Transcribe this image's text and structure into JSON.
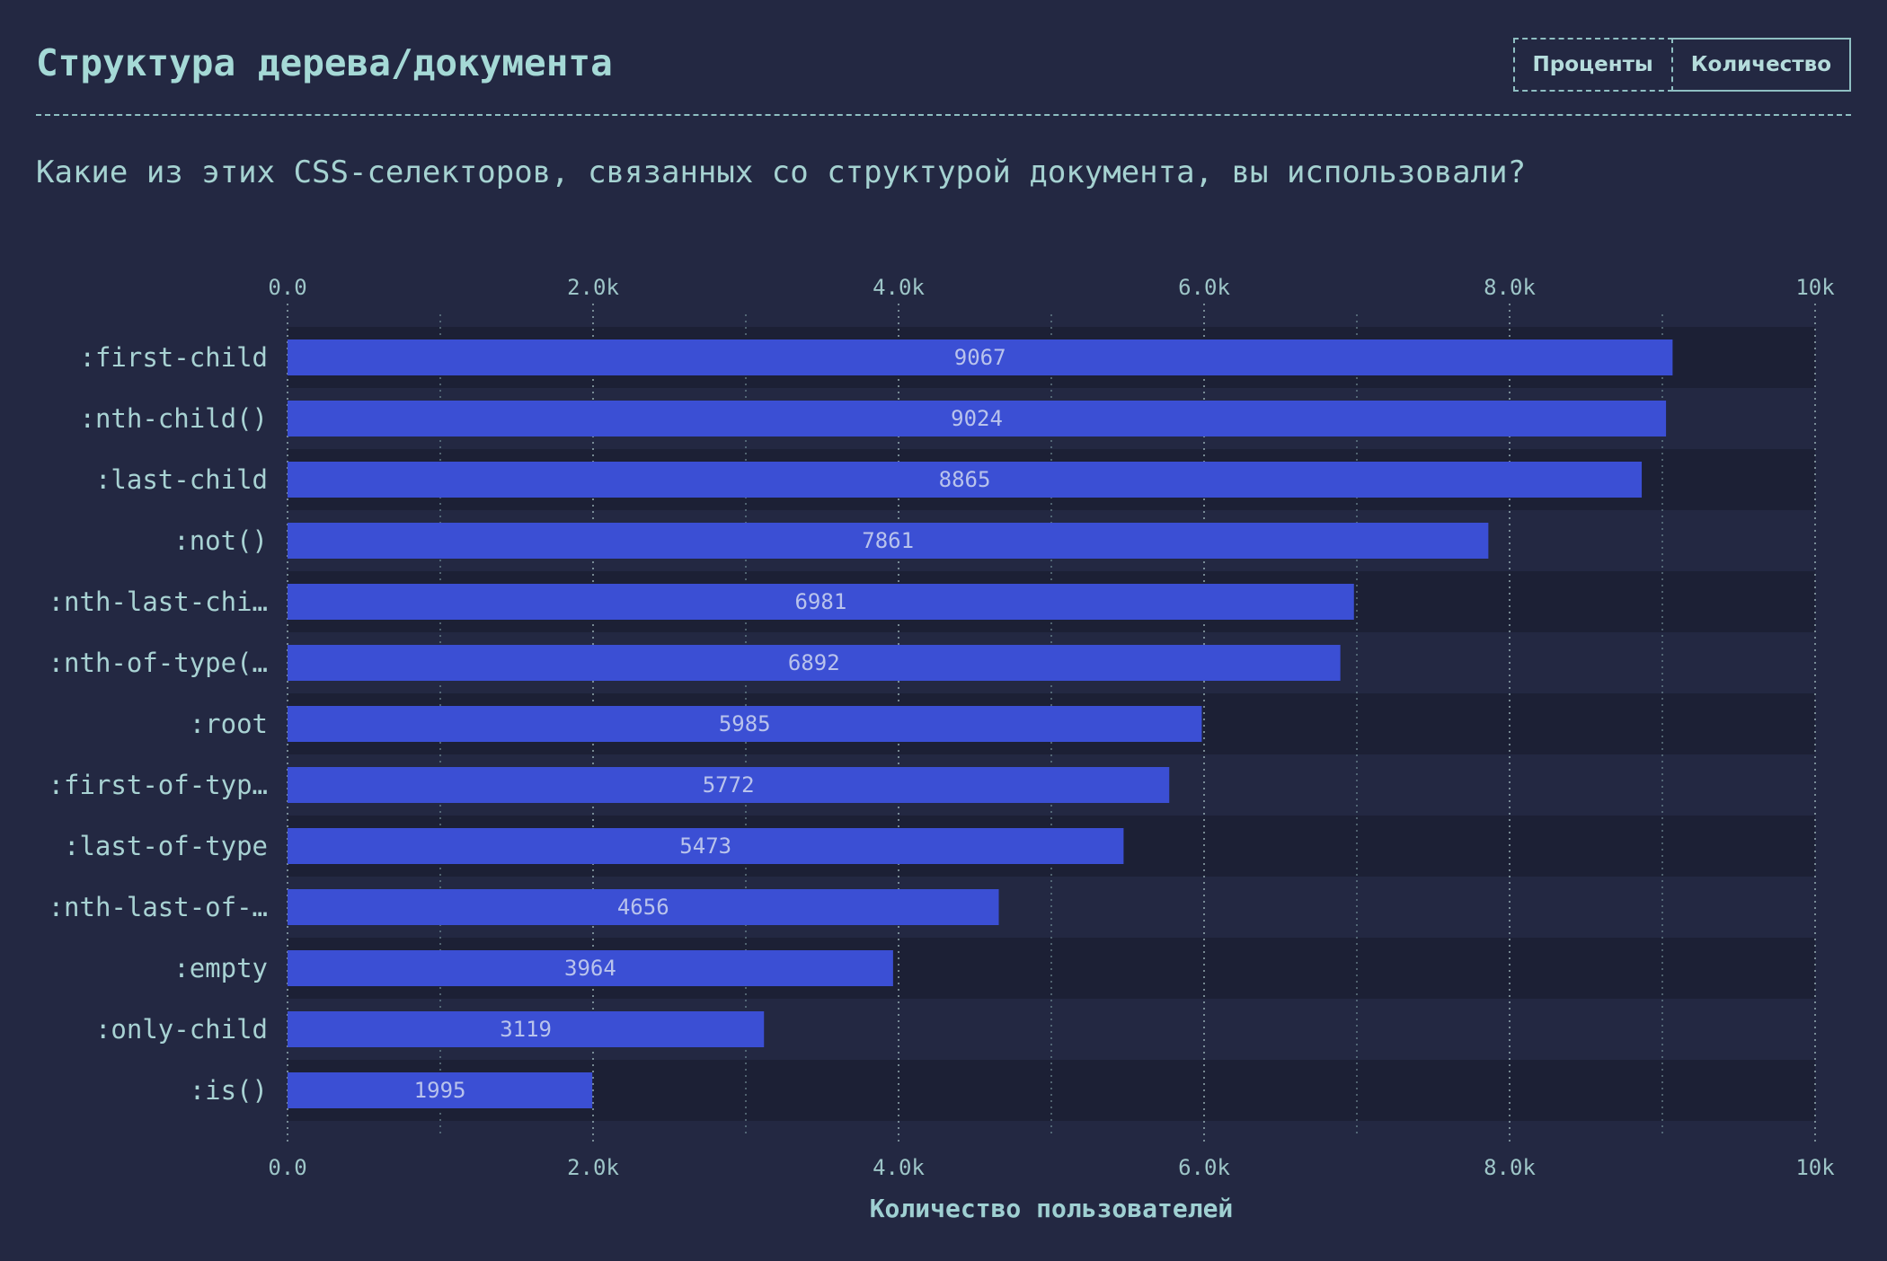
{
  "header": {
    "title": "Структура дерева/документа",
    "toggle": {
      "percent_label": "Проценты",
      "count_label": "Количество",
      "active": "count"
    }
  },
  "question": "Какие из этих CSS-селекторов, связанных со структурой документа, вы использовали?",
  "colors": {
    "background": "#232842",
    "row_band_dark": "#1c2035",
    "bar": "#3b4fd4",
    "text_accent": "#a5d9d6"
  },
  "chart_data": {
    "type": "bar",
    "orientation": "horizontal",
    "categories": [
      ":first-child",
      ":nth-child()",
      ":last-child",
      ":not()",
      ":nth-last-chi…",
      ":nth-of-type(…",
      ":root",
      ":first-of-typ…",
      ":last-of-type",
      ":nth-last-of-…",
      ":empty",
      ":only-child",
      ":is()"
    ],
    "values": [
      9067,
      9024,
      8865,
      7861,
      6981,
      6892,
      5985,
      5772,
      5473,
      4656,
      3964,
      3119,
      1995
    ],
    "xlim": [
      0,
      10000
    ],
    "ticks": [
      0,
      2000,
      4000,
      6000,
      8000,
      10000
    ],
    "tick_labels": [
      "0.0",
      "2.0k",
      "4.0k",
      "6.0k",
      "8.0k",
      "10k"
    ],
    "minor_grid": [
      1000,
      3000,
      5000,
      7000,
      9000
    ],
    "xlabel": "Количество пользователей",
    "ylabel": "",
    "grid": true,
    "tick_labels_position": "top and bottom"
  }
}
